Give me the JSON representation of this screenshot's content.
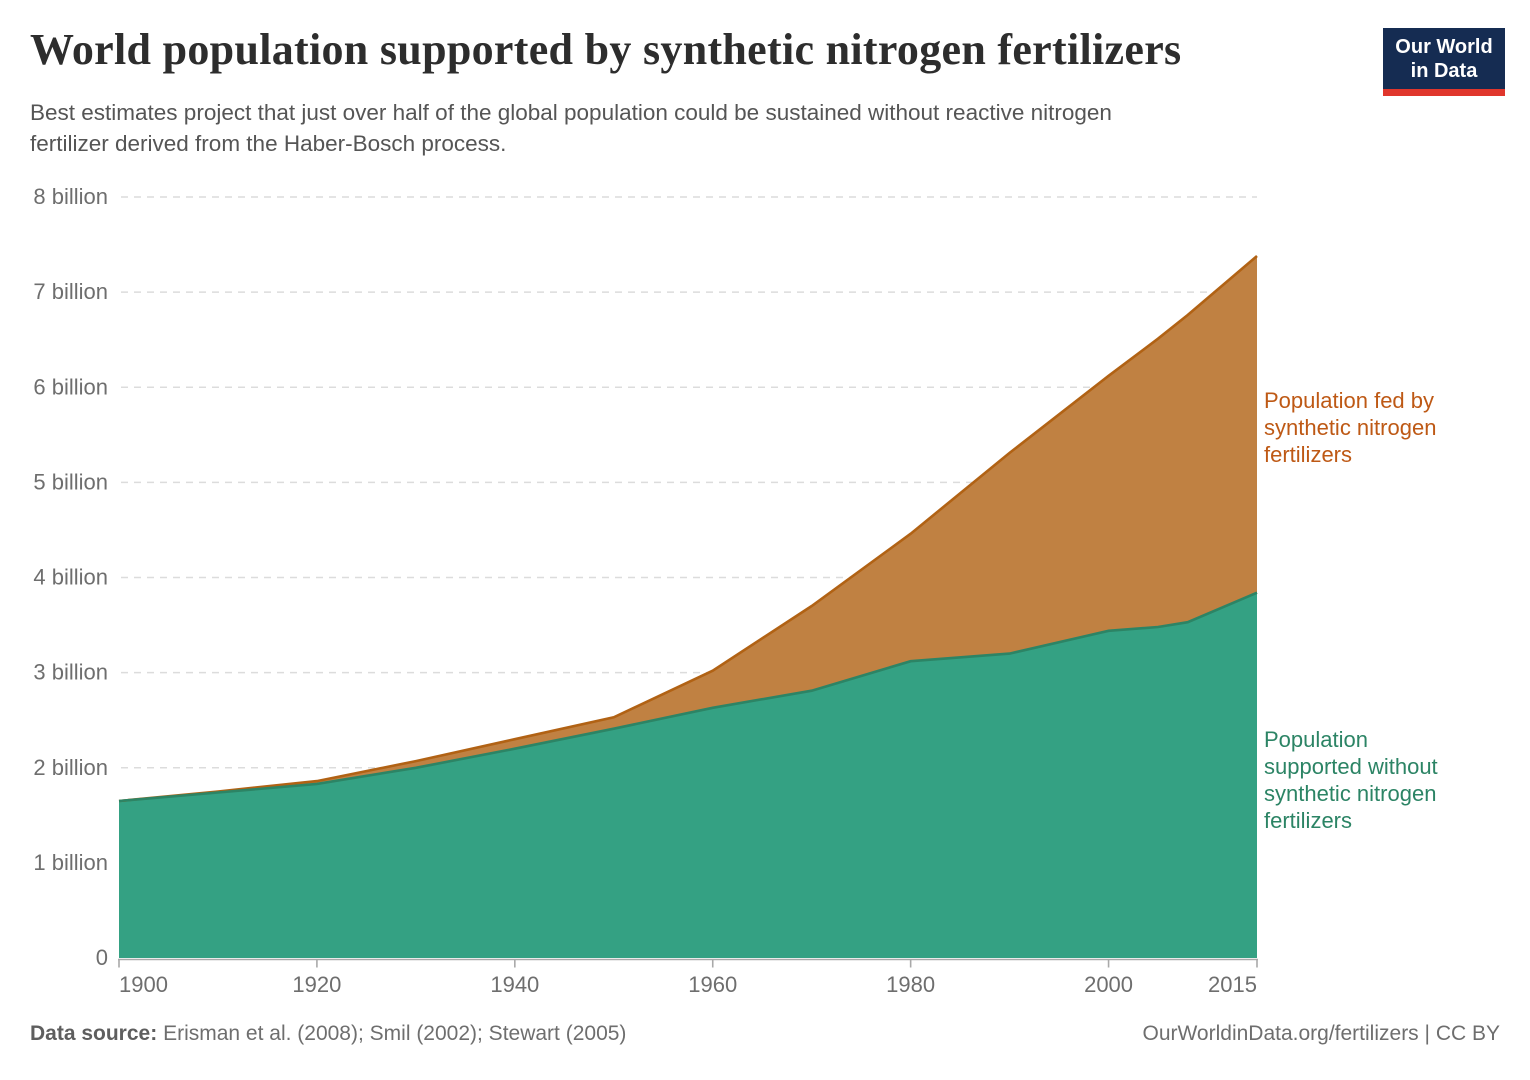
{
  "header": {
    "title": "World population supported by synthetic nitrogen fertilizers",
    "subtitle_line1": "Best estimates project that just over half of the global population could be sustained without reactive nitrogen",
    "subtitle_line2": "fertilizer derived from the Haber-Bosch process.",
    "logo_line1": "Our World",
    "logo_line2": "in Data",
    "logo_bg_color": "#152C52",
    "logo_accent_color": "#E0362C"
  },
  "annotations": {
    "fed_label": "Population fed by synthetic nitrogen fertilizers",
    "without_label": "Population supported without synthetic nitrogen fertilizers"
  },
  "footer": {
    "source_label": "Data source:",
    "sources": "Erisman et al. (2008); Smil (2002); Stewart (2005)",
    "url": "OurWorldinData.org/fertilizers",
    "separator": " | ",
    "license": "CC BY"
  },
  "chart_data": {
    "type": "area",
    "stacked": true,
    "title": "World population supported by synthetic nitrogen fertilizers",
    "xlabel": "",
    "ylabel": "",
    "x": [
      1900,
      1910,
      1920,
      1930,
      1940,
      1950,
      1960,
      1970,
      1980,
      1990,
      2000,
      2005,
      2008,
      2015
    ],
    "series": [
      {
        "name": "Population supported without synthetic nitrogen fertilizers",
        "values": [
          1.65,
          1.74,
          1.83,
          2.0,
          2.2,
          2.41,
          2.63,
          2.81,
          3.12,
          3.2,
          3.44,
          3.48,
          3.53,
          3.84
        ],
        "line_color": "#2C8465",
        "fill_color": "#34A183"
      },
      {
        "name": "Population fed by synthetic nitrogen fertilizers",
        "values": [
          0.0,
          0.01,
          0.03,
          0.07,
          0.1,
          0.12,
          0.39,
          0.89,
          1.34,
          2.11,
          2.68,
          3.03,
          3.23,
          3.54
        ],
        "line_color": "#B16214",
        "fill_color": "#C08142"
      }
    ],
    "world_population_total": [
      1.65,
      1.75,
      1.86,
      2.07,
      2.3,
      2.53,
      3.02,
      3.7,
      4.46,
      5.31,
      6.12,
      6.51,
      6.76,
      7.38
    ],
    "unit": "billion people",
    "xlim": [
      1900,
      2015
    ],
    "ylim": [
      0,
      8
    ],
    "xticks": [
      1900,
      1920,
      1940,
      1960,
      1980,
      2000,
      2015
    ],
    "yticks": [
      0,
      1,
      2,
      3,
      4,
      5,
      6,
      7,
      8
    ],
    "ytick_labels": [
      "0",
      "1 billion",
      "2 billion",
      "3 billion",
      "4 billion",
      "5 billion",
      "6 billion",
      "7 billion",
      "8 billion"
    ],
    "grid": "horizontal-dashed",
    "legend_position": "right-annotations",
    "colors": {
      "grid": "#DCDCDC",
      "axis": "#A9A9A9",
      "tick_text": "#6E6E6E"
    }
  }
}
